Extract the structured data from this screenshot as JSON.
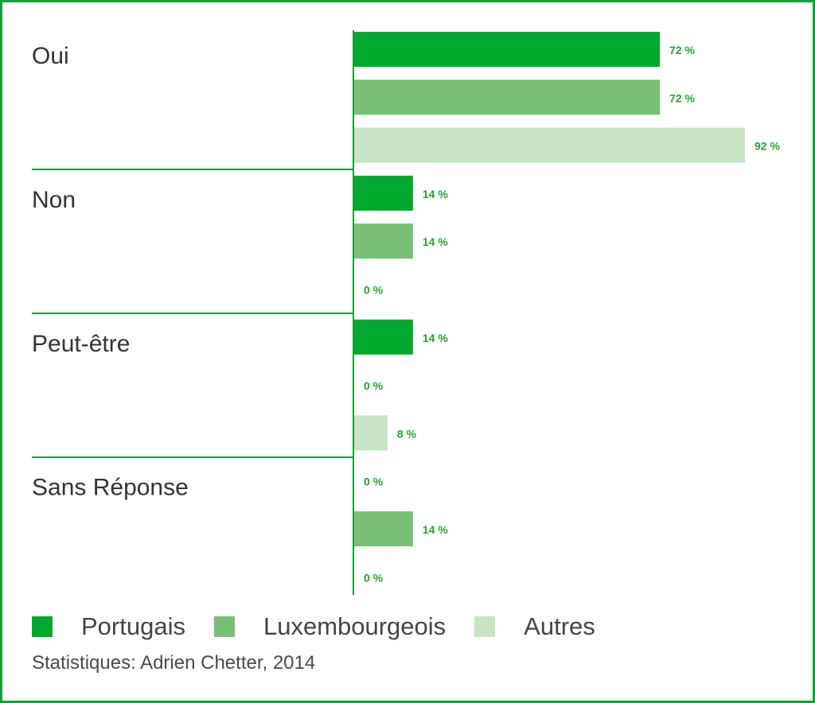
{
  "chart_data": {
    "type": "bar",
    "orientation": "horizontal",
    "categories": [
      "Oui",
      "Non",
      "Peut-être",
      "Sans Réponse"
    ],
    "series": [
      {
        "name": "Portugais",
        "values": [
          72,
          14,
          14,
          0
        ],
        "color": "#00a82d"
      },
      {
        "name": "Luxembourgeois",
        "values": [
          72,
          14,
          0,
          14
        ],
        "color": "#77c075"
      },
      {
        "name": "Autres",
        "values": [
          92,
          0,
          8,
          0
        ],
        "color": "#c6e4c3"
      }
    ],
    "value_suffix": " %",
    "xlim": [
      0,
      100
    ],
    "grid": false,
    "legend": "bottom",
    "source": "Statistiques: Adrien Chetter, 2014"
  },
  "colors": {
    "frame": "#1a9c3a",
    "separator": "#1a9c3a",
    "axis": "#1a9c3a",
    "value_label": "#22a336"
  }
}
